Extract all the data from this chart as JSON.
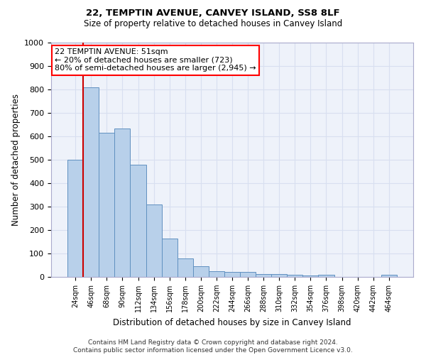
{
  "title1": "22, TEMPTIN AVENUE, CANVEY ISLAND, SS8 8LF",
  "title2": "Size of property relative to detached houses in Canvey Island",
  "xlabel": "Distribution of detached houses by size in Canvey Island",
  "ylabel": "Number of detached properties",
  "footer1": "Contains HM Land Registry data © Crown copyright and database right 2024.",
  "footer2": "Contains public sector information licensed under the Open Government Licence v3.0.",
  "annotation_line1": "22 TEMPTIN AVENUE: 51sqm",
  "annotation_line2": "← 20% of detached houses are smaller (723)",
  "annotation_line3": "80% of semi-detached houses are larger (2,945) →",
  "bar_color": "#b8d0ea",
  "bar_edge_color": "#6090c0",
  "property_line_color": "#cc0000",
  "background_color": "#eef2fa",
  "grid_color": "#d8dff0",
  "categories": [
    "24sqm",
    "46sqm",
    "68sqm",
    "90sqm",
    "112sqm",
    "134sqm",
    "156sqm",
    "178sqm",
    "200sqm",
    "222sqm",
    "244sqm",
    "266sqm",
    "288sqm",
    "310sqm",
    "332sqm",
    "354sqm",
    "376sqm",
    "398sqm",
    "420sqm",
    "442sqm",
    "464sqm"
  ],
  "values": [
    500,
    808,
    615,
    633,
    478,
    308,
    163,
    78,
    46,
    25,
    22,
    20,
    13,
    12,
    8,
    5,
    10,
    0,
    0,
    0,
    10
  ],
  "ylim": [
    0,
    1000
  ],
  "yticks": [
    0,
    100,
    200,
    300,
    400,
    500,
    600,
    700,
    800,
    900,
    1000
  ],
  "vline_x_index": 0.5
}
